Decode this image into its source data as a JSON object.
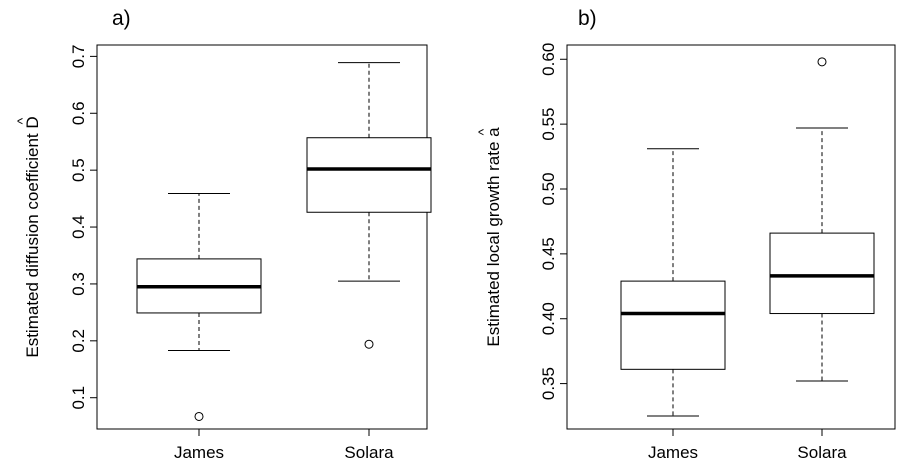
{
  "chart_data": [
    {
      "type": "boxplot",
      "panel_label": "a)",
      "ylabel": "Estimated diffusion coefficient",
      "ylabel_symbol": "D",
      "ylabel_hat": "^",
      "categories": [
        "James",
        "Solara"
      ],
      "ylim": [
        0.045,
        0.72
      ],
      "yticks": [
        0.1,
        0.2,
        0.3,
        0.4,
        0.5,
        0.6,
        0.7
      ],
      "ytick_labels": [
        "0.1",
        "0.2",
        "0.3",
        "0.4",
        "0.5",
        "0.6",
        "0.7"
      ],
      "boxes": [
        {
          "whisker_low": 0.183,
          "q1": 0.249,
          "median": 0.295,
          "q3": 0.344,
          "whisker_high": 0.459,
          "outliers": [
            0.067
          ]
        },
        {
          "whisker_low": 0.305,
          "q1": 0.426,
          "median": 0.502,
          "q3": 0.557,
          "whisker_high": 0.689,
          "outliers": [
            0.194
          ]
        }
      ]
    },
    {
      "type": "boxplot",
      "panel_label": "b)",
      "ylabel": "Estimated local growth rate",
      "ylabel_symbol": "a",
      "ylabel_hat": "^",
      "categories": [
        "James",
        "Solara"
      ],
      "ylim": [
        0.315,
        0.611
      ],
      "yticks": [
        0.35,
        0.4,
        0.45,
        0.5,
        0.55,
        0.6
      ],
      "ytick_labels": [
        "0.35",
        "0.40",
        "0.45",
        "0.50",
        "0.55",
        "0.60"
      ],
      "boxes": [
        {
          "whisker_low": 0.325,
          "q1": 0.361,
          "median": 0.404,
          "q3": 0.429,
          "whisker_high": 0.531,
          "outliers": []
        },
        {
          "whisker_low": 0.352,
          "q1": 0.404,
          "median": 0.433,
          "q3": 0.466,
          "whisker_high": 0.547,
          "outliers": [
            0.598
          ]
        }
      ]
    }
  ]
}
